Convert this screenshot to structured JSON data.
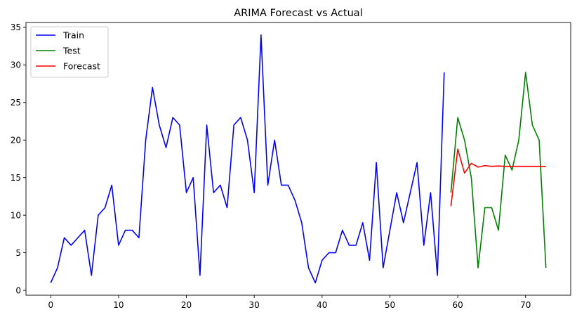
{
  "chart_data": {
    "type": "line",
    "title": "ARIMA Forecast vs Actual",
    "xlabel": "",
    "ylabel": "",
    "xlim": [
      -3.65,
      76.65
    ],
    "ylim": [
      -0.65,
      35.65
    ],
    "xticks": [
      0,
      10,
      20,
      30,
      40,
      50,
      60,
      70
    ],
    "yticks": [
      0,
      5,
      10,
      15,
      20,
      25,
      30,
      35
    ],
    "grid": false,
    "legend_position": "top-left",
    "series": [
      {
        "name": "Train",
        "color": "#0000ff",
        "x": [
          0,
          1,
          2,
          3,
          4,
          5,
          6,
          7,
          8,
          9,
          10,
          11,
          12,
          13,
          14,
          15,
          16,
          17,
          18,
          19,
          20,
          21,
          22,
          23,
          24,
          25,
          26,
          27,
          28,
          29,
          30,
          31,
          32,
          33,
          34,
          35,
          36,
          37,
          38,
          39,
          40,
          41,
          42,
          43,
          44,
          45,
          46,
          47,
          48,
          49,
          50,
          51,
          52,
          53,
          54,
          55,
          56,
          57,
          58
        ],
        "y": [
          1,
          3,
          7,
          6,
          7,
          8,
          2,
          10,
          11,
          14,
          6,
          8,
          8,
          7,
          20,
          27,
          22,
          19,
          23,
          22,
          13,
          15,
          2,
          22,
          13,
          14,
          11,
          22,
          23,
          20,
          13,
          34,
          14,
          20,
          14,
          14,
          12,
          9,
          3,
          1,
          4,
          5,
          5,
          8,
          6,
          6,
          9,
          4,
          17,
          3,
          8,
          13,
          9,
          13,
          17,
          6,
          13,
          2,
          29
        ]
      },
      {
        "name": "Test",
        "color": "#008000",
        "x": [
          59,
          60,
          61,
          62,
          63,
          64,
          65,
          66,
          67,
          68,
          69,
          70,
          71,
          72,
          73
        ],
        "y": [
          13,
          23,
          20,
          15,
          3,
          11,
          11,
          8,
          18,
          16,
          20,
          29,
          22,
          20,
          3
        ]
      },
      {
        "name": "Forecast",
        "color": "#ff0000",
        "x": [
          59,
          60,
          61,
          62,
          63,
          64,
          65,
          66,
          67,
          68,
          69,
          70,
          71,
          72,
          73
        ],
        "y": [
          11.2,
          18.8,
          15.6,
          16.9,
          16.4,
          16.6,
          16.5,
          16.55,
          16.5,
          16.5,
          16.5,
          16.5,
          16.5,
          16.5,
          16.5
        ]
      }
    ]
  }
}
